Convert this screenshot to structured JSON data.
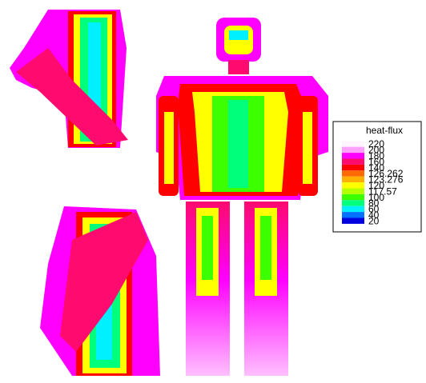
{
  "legend": {
    "title": "heat-flux",
    "levels": [
      {
        "label": "220",
        "color": "#fff4ff"
      },
      {
        "label": "200",
        "color": "#ffa0ff"
      },
      {
        "label": "180",
        "color": "#ff00ff"
      },
      {
        "label": "160",
        "color": "#ff0a6e"
      },
      {
        "label": "140",
        "color": "#ff0000"
      },
      {
        "label": "126.262",
        "color": "#ff6a00"
      },
      {
        "label": "123.276",
        "color": "#ffb000"
      },
      {
        "label": "120",
        "color": "#ffff00"
      },
      {
        "label": "117.57",
        "color": "#b4ff00"
      },
      {
        "label": "100",
        "color": "#3cff00"
      },
      {
        "label": "80",
        "color": "#00ff7a"
      },
      {
        "label": "60",
        "color": "#00f0ff"
      },
      {
        "label": "40",
        "color": "#0070ff"
      },
      {
        "label": "20",
        "color": "#0000e0"
      }
    ]
  }
}
